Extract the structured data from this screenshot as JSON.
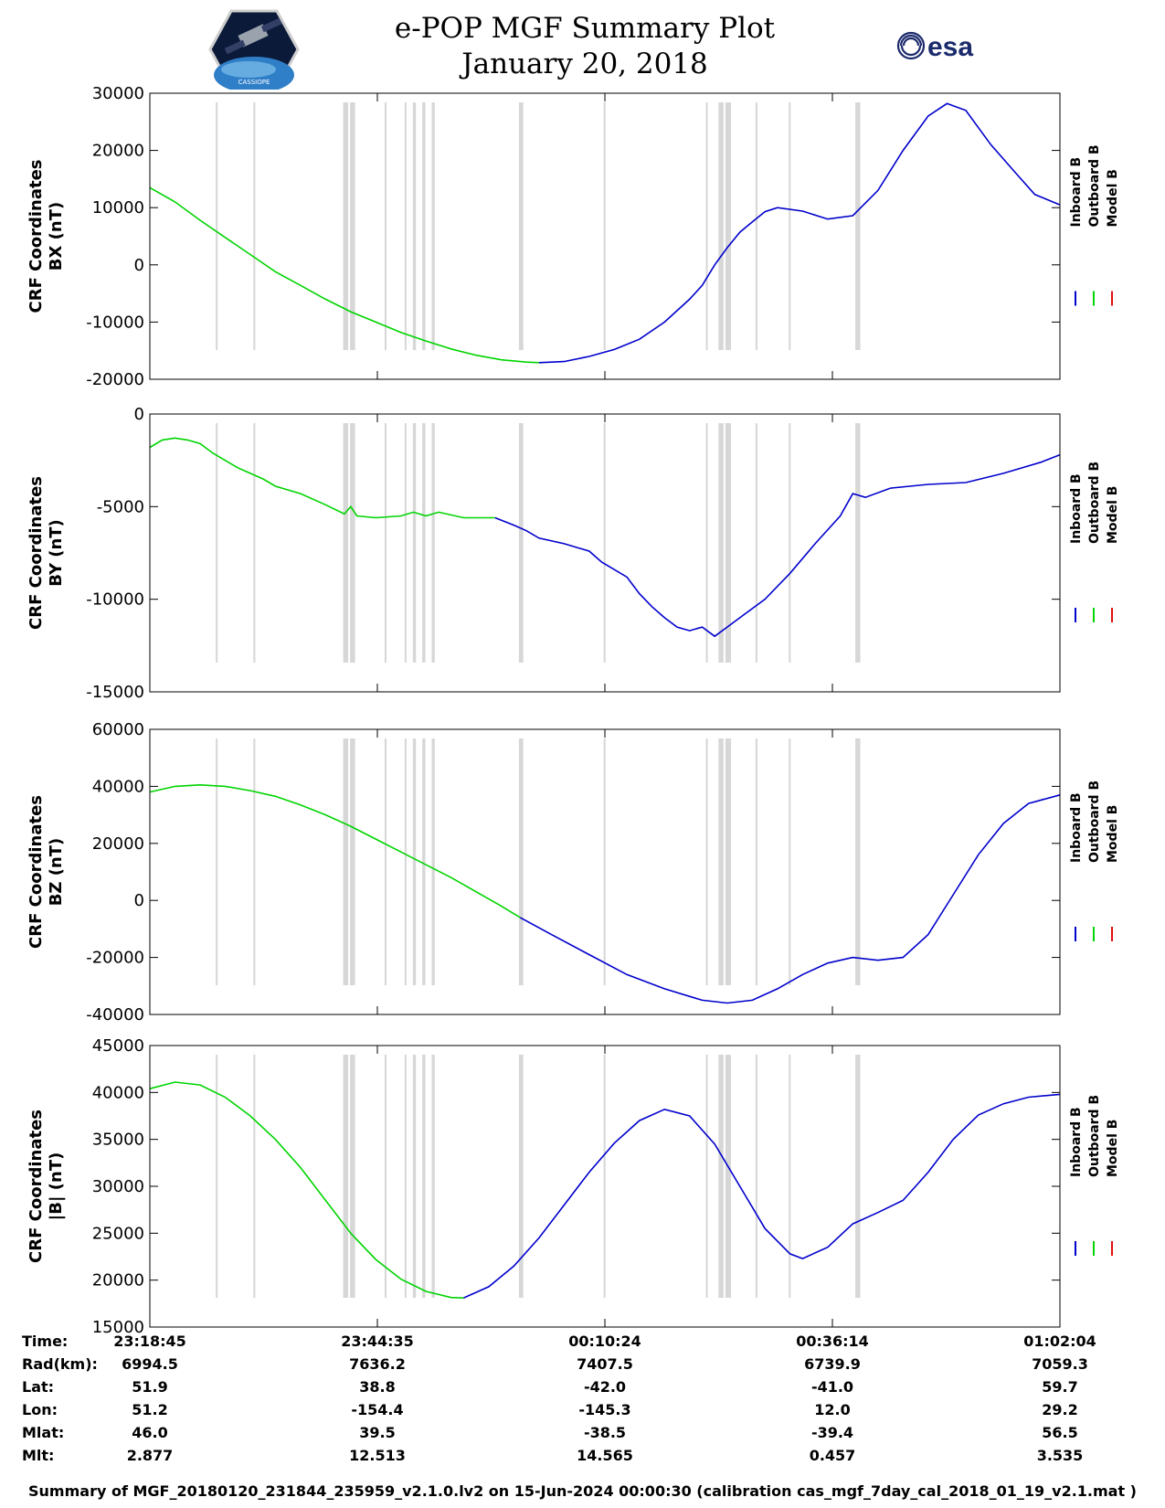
{
  "title": {
    "line1": "e-POP MGF Summary Plot",
    "line2": "January 20, 2018"
  },
  "logos": {
    "mission_text": "CASSIOPE",
    "esa_text": "esa",
    "mission_icon": "satellite-hexagon-icon",
    "esa_icon": "esa-swirl-icon"
  },
  "colors": {
    "inboard": "#0000cc",
    "outboard": "#00d400",
    "model": "#e01010",
    "gap": "#d7d7d7"
  },
  "chart_data": [
    {
      "type": "line",
      "ylabel": [
        "CRF Coordinates",
        "BX (nT)"
      ],
      "ylim": [
        -20000,
        30000
      ],
      "yticks": [
        -20000,
        -10000,
        0,
        10000,
        20000,
        30000
      ],
      "legend": [
        "Inboard B",
        "Outboard B",
        "Model B"
      ],
      "outboard": [
        [
          0,
          13500
        ],
        [
          4,
          11000
        ],
        [
          8,
          7800
        ],
        [
          12,
          4800
        ],
        [
          16,
          1800
        ],
        [
          20,
          -1200
        ],
        [
          24,
          -3600
        ],
        [
          28,
          -6000
        ],
        [
          32,
          -8200
        ],
        [
          36,
          -10000
        ],
        [
          40,
          -11800
        ],
        [
          44,
          -13300
        ],
        [
          48,
          -14700
        ],
        [
          52,
          -15800
        ],
        [
          56,
          -16600
        ],
        [
          60,
          -17000
        ],
        [
          62,
          -17100
        ]
      ],
      "inboard": [
        [
          62,
          -17100
        ],
        [
          66,
          -16900
        ],
        [
          70,
          -16000
        ],
        [
          74,
          -14800
        ],
        [
          78,
          -13000
        ],
        [
          82,
          -10000
        ],
        [
          86,
          -6000
        ],
        [
          88,
          -3600
        ],
        [
          90,
          0
        ],
        [
          92,
          3000
        ],
        [
          94,
          5700
        ],
        [
          96,
          7500
        ],
        [
          98,
          9300
        ],
        [
          100,
          10000
        ],
        [
          104,
          9400
        ],
        [
          108,
          8000
        ],
        [
          112,
          8600
        ],
        [
          116,
          13000
        ],
        [
          120,
          20000
        ],
        [
          124,
          26000
        ],
        [
          127,
          28200
        ],
        [
          130,
          27000
        ],
        [
          134,
          21000
        ],
        [
          138,
          16000
        ],
        [
          141,
          12300
        ],
        [
          145,
          10500
        ]
      ]
    },
    {
      "type": "line",
      "ylabel": [
        "CRF Coordinates",
        "BY (nT)"
      ],
      "ylim": [
        -15000,
        0
      ],
      "yticks": [
        -15000,
        -10000,
        -5000,
        0
      ],
      "legend": [
        "Inboard B",
        "Outboard B",
        "Model B"
      ],
      "outboard": [
        [
          0,
          -1800
        ],
        [
          2,
          -1400
        ],
        [
          4,
          -1300
        ],
        [
          6,
          -1400
        ],
        [
          8,
          -1600
        ],
        [
          10,
          -2100
        ],
        [
          12,
          -2500
        ],
        [
          14,
          -2900
        ],
        [
          16,
          -3200
        ],
        [
          18,
          -3500
        ],
        [
          20,
          -3900
        ],
        [
          24,
          -4300
        ],
        [
          28,
          -4900
        ],
        [
          31,
          -5400
        ],
        [
          32,
          -5000
        ],
        [
          33,
          -5500
        ],
        [
          36,
          -5600
        ],
        [
          40,
          -5500
        ],
        [
          42,
          -5300
        ],
        [
          44,
          -5500
        ],
        [
          46,
          -5300
        ],
        [
          50,
          -5600
        ],
        [
          55,
          -5600
        ]
      ],
      "inboard": [
        [
          55,
          -5600
        ],
        [
          58,
          -6000
        ],
        [
          60,
          -6300
        ],
        [
          62,
          -6700
        ],
        [
          66,
          -7000
        ],
        [
          70,
          -7400
        ],
        [
          72,
          -8000
        ],
        [
          74,
          -8400
        ],
        [
          76,
          -8800
        ],
        [
          78,
          -9700
        ],
        [
          80,
          -10400
        ],
        [
          82,
          -11000
        ],
        [
          84,
          -11500
        ],
        [
          86,
          -11700
        ],
        [
          88,
          -11500
        ],
        [
          90,
          -12000
        ],
        [
          92,
          -11500
        ],
        [
          94,
          -11000
        ],
        [
          98,
          -10000
        ],
        [
          102,
          -8600
        ],
        [
          106,
          -7000
        ],
        [
          110,
          -5500
        ],
        [
          112,
          -4300
        ],
        [
          114,
          -4500
        ],
        [
          118,
          -4000
        ],
        [
          124,
          -3800
        ],
        [
          130,
          -3700
        ],
        [
          136,
          -3200
        ],
        [
          142,
          -2600
        ],
        [
          145,
          -2200
        ]
      ]
    },
    {
      "type": "line",
      "ylabel": [
        "CRF Coordinates",
        "BZ (nT)"
      ],
      "ylim": [
        -40000,
        60000
      ],
      "yticks": [
        -40000,
        -20000,
        0,
        20000,
        40000,
        60000
      ],
      "legend": [
        "Inboard B",
        "Outboard B",
        "Model B"
      ],
      "outboard": [
        [
          0,
          38000
        ],
        [
          4,
          40000
        ],
        [
          8,
          40500
        ],
        [
          12,
          40000
        ],
        [
          16,
          38500
        ],
        [
          20,
          36500
        ],
        [
          24,
          33500
        ],
        [
          28,
          30000
        ],
        [
          32,
          26000
        ],
        [
          36,
          21500
        ],
        [
          40,
          17000
        ],
        [
          44,
          12500
        ],
        [
          48,
          8000
        ],
        [
          52,
          3000
        ],
        [
          56,
          -2000
        ],
        [
          59,
          -6000
        ]
      ],
      "inboard": [
        [
          59,
          -6000
        ],
        [
          64,
          -12000
        ],
        [
          70,
          -19000
        ],
        [
          76,
          -26000
        ],
        [
          82,
          -31000
        ],
        [
          88,
          -35000
        ],
        [
          92,
          -36000
        ],
        [
          96,
          -35000
        ],
        [
          100,
          -31000
        ],
        [
          104,
          -26000
        ],
        [
          108,
          -22000
        ],
        [
          112,
          -20000
        ],
        [
          116,
          -21000
        ],
        [
          120,
          -20000
        ],
        [
          124,
          -12000
        ],
        [
          128,
          2000
        ],
        [
          132,
          16000
        ],
        [
          136,
          27000
        ],
        [
          140,
          34000
        ],
        [
          145,
          37000
        ]
      ]
    },
    {
      "type": "line",
      "ylabel": [
        "CRF Coordinates",
        "|B| (nT)"
      ],
      "ylim": [
        15000,
        45000
      ],
      "yticks": [
        15000,
        20000,
        25000,
        30000,
        35000,
        40000,
        45000
      ],
      "legend": [
        "Inboard B",
        "Outboard B",
        "Model B"
      ],
      "outboard": [
        [
          0,
          40400
        ],
        [
          4,
          41100
        ],
        [
          8,
          40800
        ],
        [
          12,
          39500
        ],
        [
          16,
          37500
        ],
        [
          20,
          35000
        ],
        [
          24,
          32000
        ],
        [
          28,
          28500
        ],
        [
          32,
          25000
        ],
        [
          36,
          22200
        ],
        [
          40,
          20100
        ],
        [
          44,
          18800
        ],
        [
          48,
          18150
        ],
        [
          50,
          18100
        ]
      ],
      "inboard": [
        [
          50,
          18100
        ],
        [
          54,
          19300
        ],
        [
          58,
          21500
        ],
        [
          62,
          24500
        ],
        [
          66,
          28000
        ],
        [
          70,
          31500
        ],
        [
          74,
          34600
        ],
        [
          78,
          37000
        ],
        [
          82,
          38200
        ],
        [
          86,
          37500
        ],
        [
          90,
          34500
        ],
        [
          94,
          30000
        ],
        [
          98,
          25500
        ],
        [
          102,
          22800
        ],
        [
          104,
          22300
        ],
        [
          108,
          23500
        ],
        [
          112,
          26000
        ],
        [
          116,
          27200
        ],
        [
          120,
          28500
        ],
        [
          124,
          31500
        ],
        [
          128,
          35000
        ],
        [
          132,
          37600
        ],
        [
          136,
          38800
        ],
        [
          140,
          39500
        ],
        [
          145,
          39800
        ]
      ]
    }
  ],
  "x_axis": {
    "range": [
      0,
      145
    ],
    "tick_positions": [
      0,
      36.25,
      72.5,
      108.75,
      145
    ],
    "tick_labels": [
      "23:18:45",
      "23:44:35",
      "00:10:24",
      "00:36:14",
      "01:02:04"
    ]
  },
  "gaps": [
    [
      10.5,
      10.8
    ],
    [
      16.5,
      16.8
    ],
    [
      30.8,
      31.6
    ],
    [
      31.9,
      32.7
    ],
    [
      37.4,
      37.7
    ],
    [
      40.6,
      40.9
    ],
    [
      41.9,
      42.4
    ],
    [
      43.4,
      43.9
    ],
    [
      44.9,
      45.4
    ],
    [
      58.8,
      59.5
    ],
    [
      72.3,
      72.6
    ],
    [
      88.6,
      88.9
    ],
    [
      90.6,
      91.4
    ],
    [
      91.7,
      92.6
    ],
    [
      96.5,
      96.8
    ],
    [
      101.8,
      102.1
    ],
    [
      112.4,
      113.2
    ]
  ],
  "info_table": {
    "headers": [
      "Time:",
      "Rad(km):",
      "Lat:",
      "Lon:",
      "Mlat:",
      "Mlt:"
    ],
    "columns": [
      [
        "23:18:45",
        "6994.5",
        "51.9",
        "51.2",
        "46.0",
        "2.877"
      ],
      [
        "23:44:35",
        "7636.2",
        "38.8",
        "-154.4",
        "39.5",
        "12.513"
      ],
      [
        "00:10:24",
        "7407.5",
        "-42.0",
        "-145.3",
        "-38.5",
        "14.565"
      ],
      [
        "00:36:14",
        "6739.9",
        "-41.0",
        "12.0",
        "-39.4",
        "0.457"
      ],
      [
        "01:02:04",
        "7059.3",
        "59.7",
        "29.2",
        "56.5",
        "3.535"
      ]
    ]
  },
  "footer": "Summary of MGF_20180120_231844_235959_v2.1.0.lv2 on 15-Jun-2024 00:00:30 (calibration cas_mgf_7day_cal_2018_01_19_v2.1.mat )"
}
